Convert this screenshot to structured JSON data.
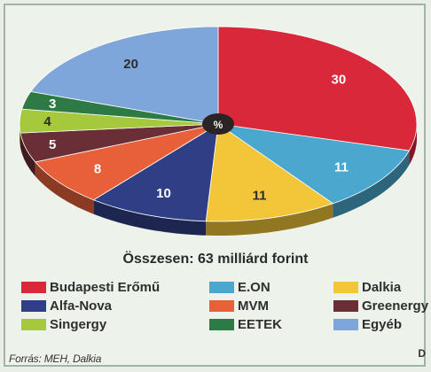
{
  "chart_data": {
    "type": "pie",
    "unit_mark": "%",
    "total_label": "Összesen: 63 milliárd forint",
    "series": [
      {
        "name": "Budapesti Erőmű",
        "value": 30,
        "color": "#d8283a"
      },
      {
        "name": "E.ON",
        "value": 11,
        "color": "#4aa8cf"
      },
      {
        "name": "Dalkia",
        "value": 11,
        "color": "#f3c63a"
      },
      {
        "name": "Alfa-Nova",
        "value": 10,
        "color": "#2f3f86"
      },
      {
        "name": "MVM",
        "value": 8,
        "color": "#e8603a"
      },
      {
        "name": "Greenergy",
        "value": 5,
        "color": "#6a2f36"
      },
      {
        "name": "Singergy",
        "value": 4,
        "color": "#a5c83c"
      },
      {
        "name": "EETEK",
        "value": 3,
        "color": "#2e7a45"
      },
      {
        "name": "Egyéb",
        "value": 20,
        "color": "#7fa6da"
      }
    ],
    "legend_placement": "bottom"
  },
  "source": "Forrás: MEH, Dalkia",
  "corner_mark": "D"
}
